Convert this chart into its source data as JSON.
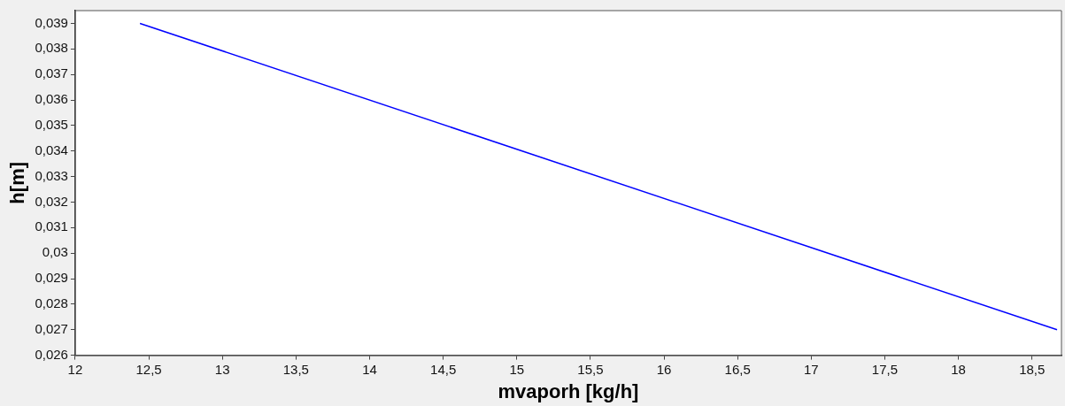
{
  "chart_data": {
    "type": "line",
    "xlabel": "mvaporh [kg/h]",
    "ylabel": "h[m]",
    "x": [
      12.44,
      18.67
    ],
    "series": [
      {
        "color": "#0000ff",
        "values": [
          0.039,
          0.027
        ]
      }
    ],
    "xlim": [
      12,
      18.7
    ],
    "xticks": [
      12,
      {
        "value": 12.5,
        "label": "12,5"
      },
      13,
      {
        "value": 13.5,
        "label": "13,5"
      },
      14,
      {
        "value": 14.5,
        "label": "14,5"
      },
      15,
      {
        "value": 15.5,
        "label": "15,5"
      },
      16,
      {
        "value": 16.5,
        "label": "16,5"
      },
      17,
      {
        "value": 17.5,
        "label": "17,5"
      },
      18,
      {
        "value": 18.5,
        "label": "18,5"
      }
    ],
    "ylim": [
      0.026,
      0.0395
    ],
    "yticks": [
      {
        "value": 0.026,
        "label": "0,026"
      },
      {
        "value": 0.027,
        "label": "0,027"
      },
      {
        "value": 0.028,
        "label": "0,028"
      },
      {
        "value": 0.029,
        "label": "0,029"
      },
      {
        "value": 0.03,
        "label": "0,03"
      },
      {
        "value": 0.031,
        "label": "0,031"
      },
      {
        "value": 0.032,
        "label": "0,032"
      },
      {
        "value": 0.033,
        "label": "0,033"
      },
      {
        "value": 0.034,
        "label": "0,034"
      },
      {
        "value": 0.035,
        "label": "0,035"
      },
      {
        "value": 0.036,
        "label": "0,036"
      },
      {
        "value": 0.037,
        "label": "0,037"
      },
      {
        "value": 0.038,
        "label": "0,038"
      },
      {
        "value": 0.039,
        "label": "0,039"
      }
    ],
    "legend": false,
    "marker": "none",
    "line_style": "solid"
  }
}
